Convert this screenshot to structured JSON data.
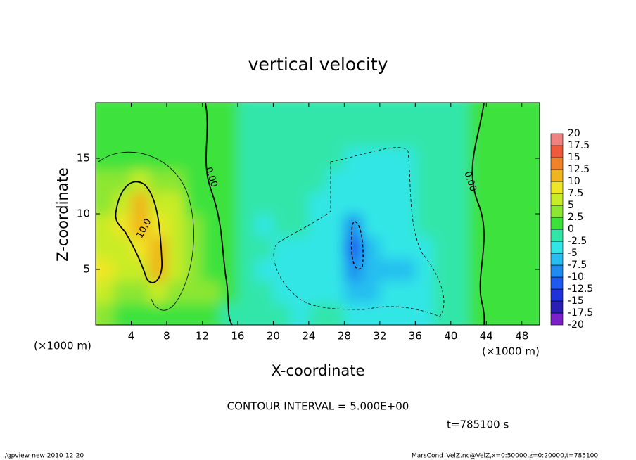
{
  "chart_data": {
    "type": "heatmap",
    "title": "vertical velocity",
    "xlabel": "X-coordinate",
    "ylabel": "Z-coordinate",
    "xunit": "(×1000 m)",
    "yunit": "(×1000 m)",
    "xlim": [
      0,
      50
    ],
    "ylim": [
      0,
      20
    ],
    "xticks": [
      4,
      8,
      12,
      16,
      20,
      24,
      28,
      32,
      36,
      40,
      44,
      48
    ],
    "yticks": [
      5,
      10,
      15
    ],
    "x": [
      1,
      3,
      5,
      7,
      9,
      11,
      13,
      15,
      17,
      19,
      21,
      23,
      25,
      27,
      29,
      31,
      33,
      35,
      37,
      39,
      41,
      43,
      45,
      47,
      49
    ],
    "y": [
      1,
      3,
      5,
      7,
      9,
      11,
      13,
      15,
      17,
      19
    ],
    "values": [
      [
        3,
        2,
        1,
        1,
        1,
        2,
        1,
        -1,
        -1,
        -1,
        -2,
        -3,
        -2,
        -2,
        -3,
        -3,
        -4,
        -4,
        -3,
        -1,
        -1,
        0.5,
        0.5,
        0.5,
        0
      ],
      [
        6,
        4,
        3,
        5,
        3,
        4,
        3,
        0.5,
        -1,
        -2,
        -4,
        -5,
        -4,
        -4,
        -6,
        -6,
        -5,
        -5,
        -4,
        -2,
        -1,
        0.5,
        1,
        1,
        0.5
      ],
      [
        8,
        6,
        7,
        10,
        5,
        3,
        2,
        0.5,
        -1,
        -3,
        -5,
        -5,
        -5,
        -5,
        -9,
        -7,
        -6,
        -6,
        -5,
        -2,
        -1,
        0.5,
        1,
        1,
        1
      ],
      [
        7,
        7,
        9,
        12,
        6,
        3,
        1.5,
        0.5,
        -1,
        -2,
        -4,
        -4,
        -4,
        -4,
        -11,
        -7,
        -5,
        -5,
        -4,
        -2,
        -1,
        0.5,
        1,
        1,
        1
      ],
      [
        5,
        8,
        11,
        9,
        6,
        3,
        1,
        0.5,
        -1,
        -3,
        -2,
        -2,
        -3,
        -3,
        -8,
        -5,
        -4,
        -4,
        -2,
        -1.5,
        -1,
        0.5,
        1,
        1,
        1
      ],
      [
        4,
        7,
        10,
        7,
        5,
        2,
        1,
        0.5,
        -1,
        -1,
        -1,
        -2,
        -3,
        -3,
        -5,
        -4,
        -4,
        -3,
        -2,
        -1,
        -0.5,
        0.5,
        1,
        1,
        1
      ],
      [
        3,
        4,
        6,
        4,
        3,
        1.5,
        0.5,
        0.5,
        -0.5,
        -1,
        -1,
        -1.5,
        -2.5,
        -3,
        -4,
        -3,
        -3,
        -3,
        -1.5,
        -1,
        -0.5,
        0.5,
        1,
        1,
        1
      ],
      [
        1,
        2,
        2,
        2,
        1,
        0.5,
        0.5,
        0.5,
        -0.5,
        -0.5,
        -1,
        -1,
        -2,
        -2,
        -3,
        -3,
        -3,
        -3,
        -1,
        -0.5,
        -0.5,
        0.5,
        1,
        1,
        1
      ],
      [
        0.5,
        1,
        1,
        1,
        0.5,
        0.5,
        0.5,
        0.5,
        -0.5,
        -0.5,
        -0.5,
        -0.5,
        -1,
        -1,
        -1,
        -1,
        -1,
        -1,
        -0.5,
        -0.5,
        -0.5,
        0.5,
        0.5,
        0.5,
        0.5
      ],
      [
        0.5,
        0.5,
        0.5,
        0.5,
        0.5,
        0.5,
        0.5,
        0.5,
        -0.5,
        -0.5,
        -0.5,
        -0.5,
        -0.5,
        -0.5,
        -0.5,
        -0.5,
        -0.5,
        -0.5,
        -0.5,
        -0.5,
        -0.5,
        0.5,
        0.5,
        0.5,
        0.5
      ]
    ],
    "levels": [
      -20,
      -17.5,
      -15,
      -12.5,
      -10,
      -7.5,
      -5,
      -2.5,
      0,
      2.5,
      5,
      7.5,
      10,
      12.5,
      15,
      17.5,
      20
    ],
    "colors": [
      "#7a22c8",
      "#2a1eb4",
      "#1e32dc",
      "#1e5af0",
      "#1e8cf0",
      "#28bef0",
      "#32e6e6",
      "#32e6aa",
      "#3ce23c",
      "#8ce632",
      "#c8ec28",
      "#f0e628",
      "#f0b41e",
      "#f08228",
      "#f05a3c",
      "#f08282"
    ],
    "annotations": [
      "0.00",
      "0.00",
      "10.0"
    ],
    "contour_interval": "CONTOUR INTERVAL = 5.000E+00",
    "time_label": "t=785100 s",
    "footer_left": "./gpview-new  2010-12-20",
    "footer_right": "MarsCond_VelZ.nc@VelZ,x=0:50000,z=0:20000,t=785100"
  }
}
